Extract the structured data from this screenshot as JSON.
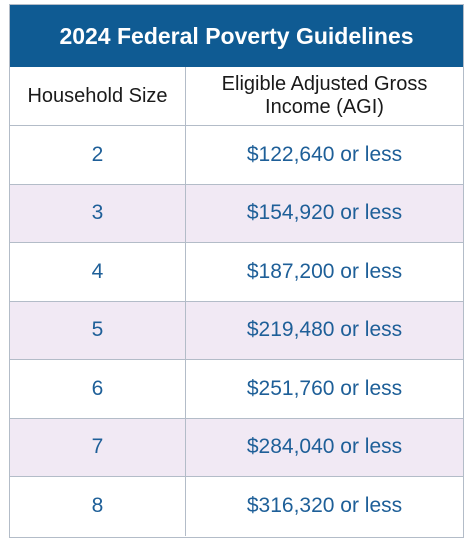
{
  "table": {
    "title": "2024 Federal Poverty Guidelines",
    "header_size": "Household Size",
    "header_income": "Eligible Adjusted Gross Income (AGI)",
    "rows": [
      {
        "size": "2",
        "income": "$122,640 or less"
      },
      {
        "size": "3",
        "income": "$154,920 or less"
      },
      {
        "size": "4",
        "income": "$187,200 or less"
      },
      {
        "size": "5",
        "income": "$219,480 or less"
      },
      {
        "size": "6",
        "income": "$251,760 or less"
      },
      {
        "size": "7",
        "income": "$284,040 or less"
      },
      {
        "size": "8",
        "income": "$316,320 or less"
      }
    ]
  },
  "colors": {
    "title_bg": "#0f5b93",
    "value_text": "#1e5f98",
    "alt_row_bg": "#f1e9f4",
    "border": "#b3bcc8"
  }
}
